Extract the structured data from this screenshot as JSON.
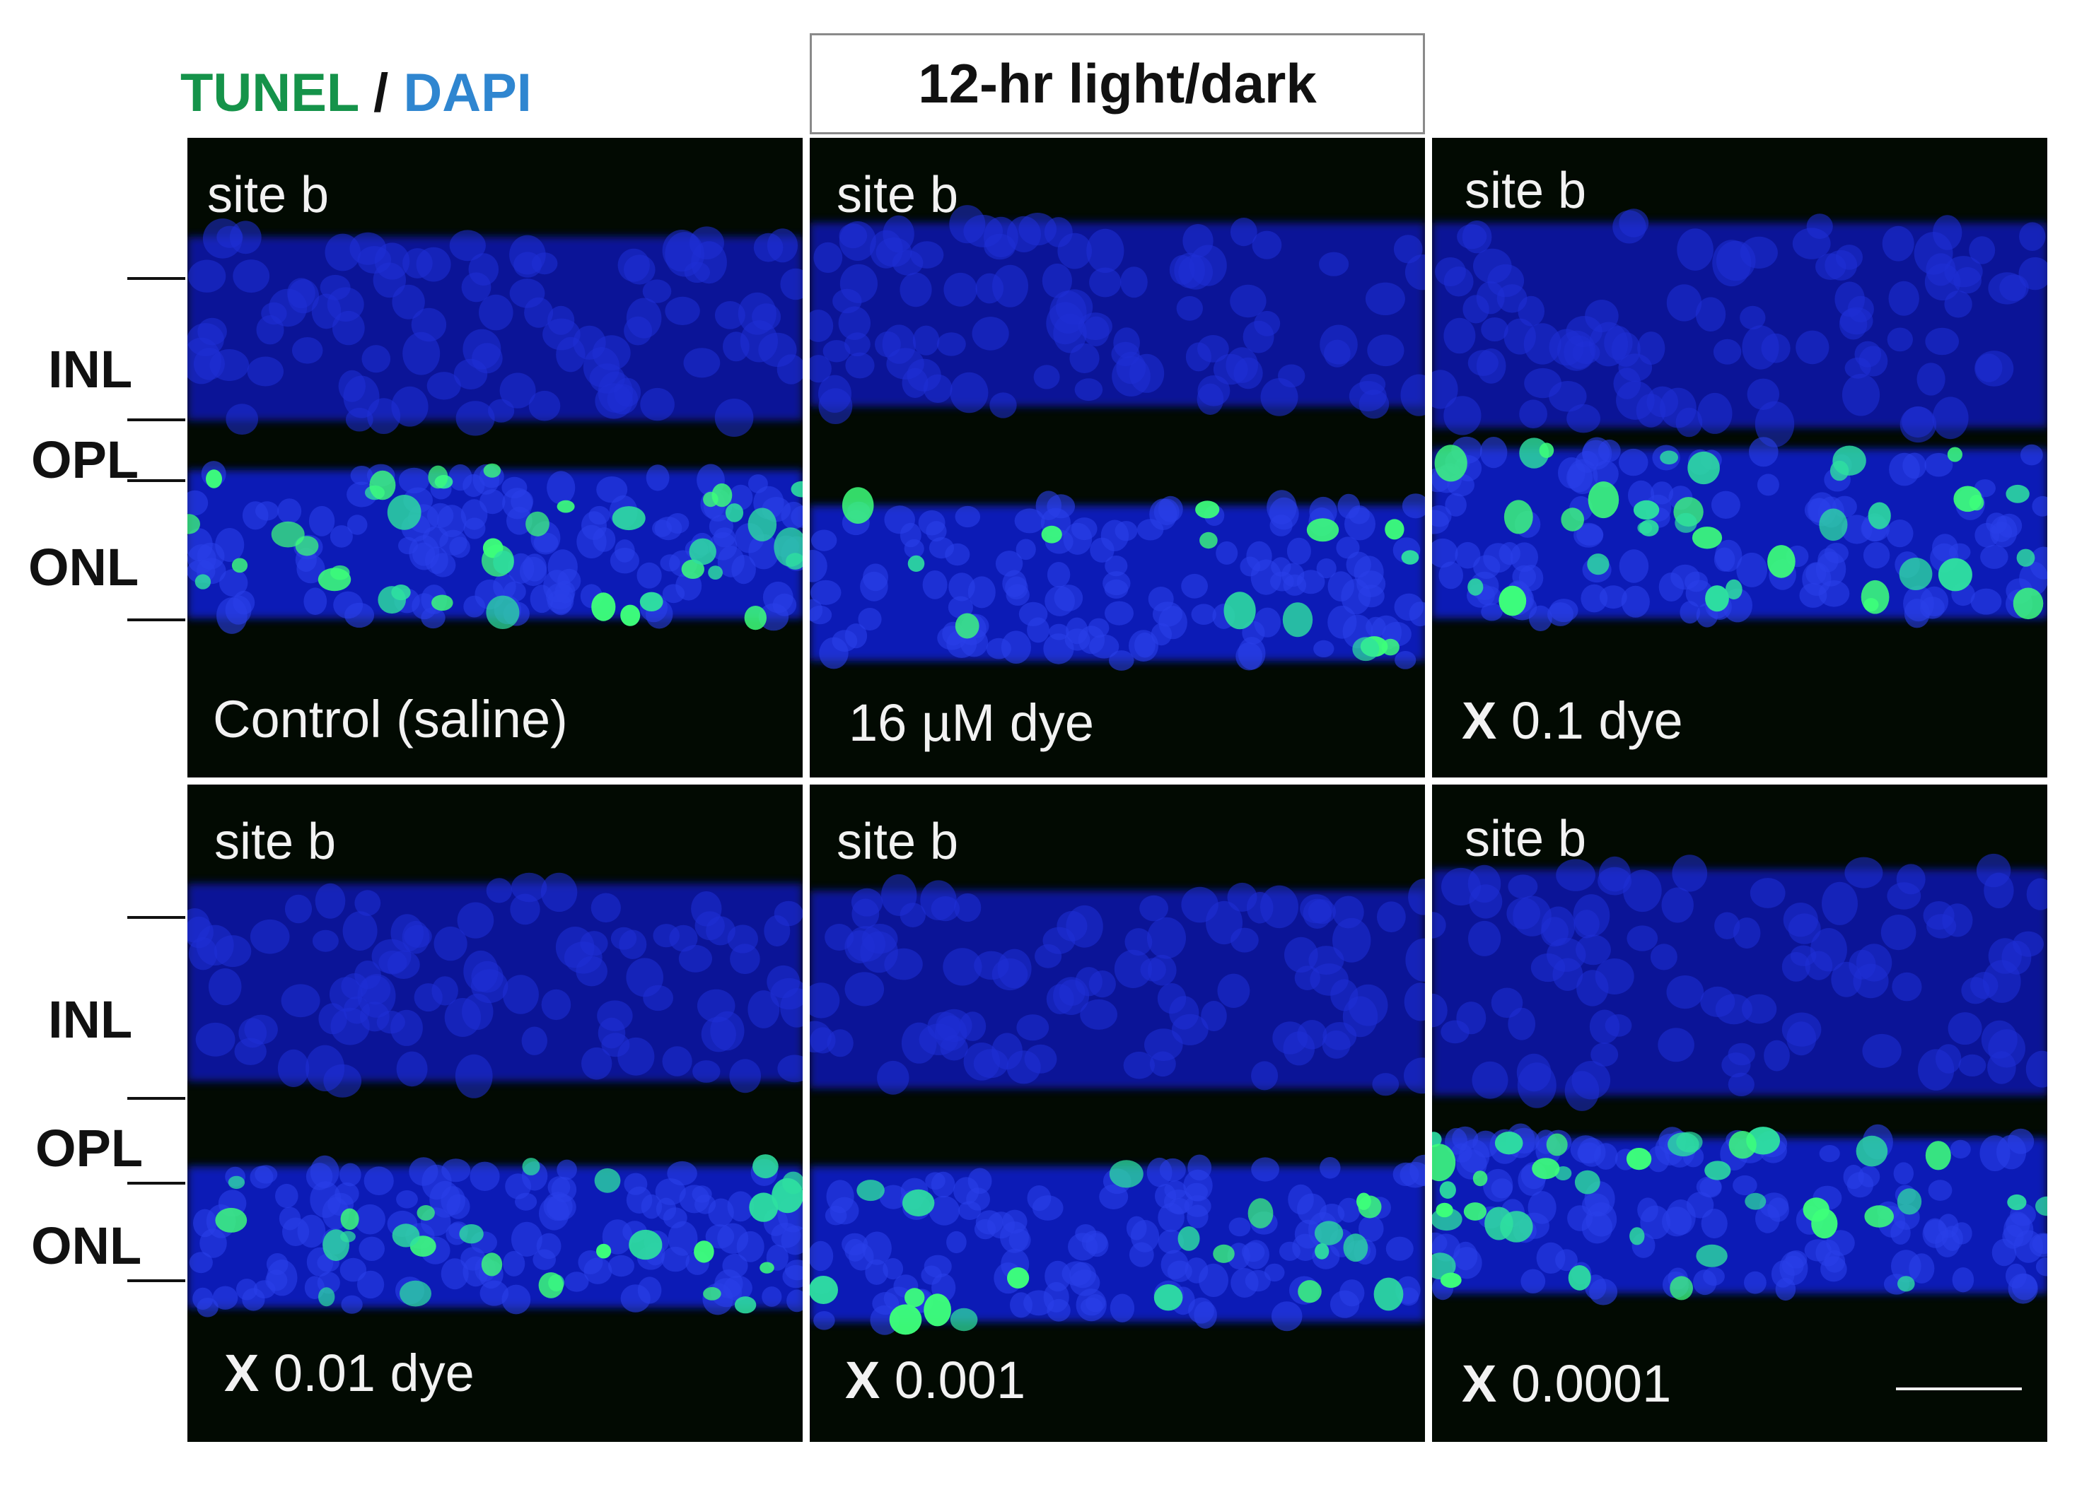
{
  "legend": {
    "tunel": "TUNEL",
    "sep": "/",
    "dapi": "DAPI"
  },
  "condition_header": "12-hr light/dark",
  "layers": {
    "inl": "INL",
    "opl": "OPL",
    "onl": "ONL"
  },
  "panels": [
    {
      "site": "site b",
      "label_prefix": "",
      "label": "Control (saline)"
    },
    {
      "site": "site b",
      "label_prefix": "",
      "label": "16 µM dye"
    },
    {
      "site": "site b",
      "label_prefix": "X",
      "label": " 0.1 dye"
    },
    {
      "site": "site b",
      "label_prefix": "X",
      "label": " 0.01 dye"
    },
    {
      "site": "site b",
      "label_prefix": "X",
      "label": " 0.001"
    },
    {
      "site": "site b",
      "label_prefix": "X",
      "label": " 0.0001"
    }
  ],
  "colors": {
    "tunel": "#15934a",
    "dapi": "#2f86d0",
    "nuclei": "#1a2fc4",
    "apoptotic": "#3dff7a"
  }
}
